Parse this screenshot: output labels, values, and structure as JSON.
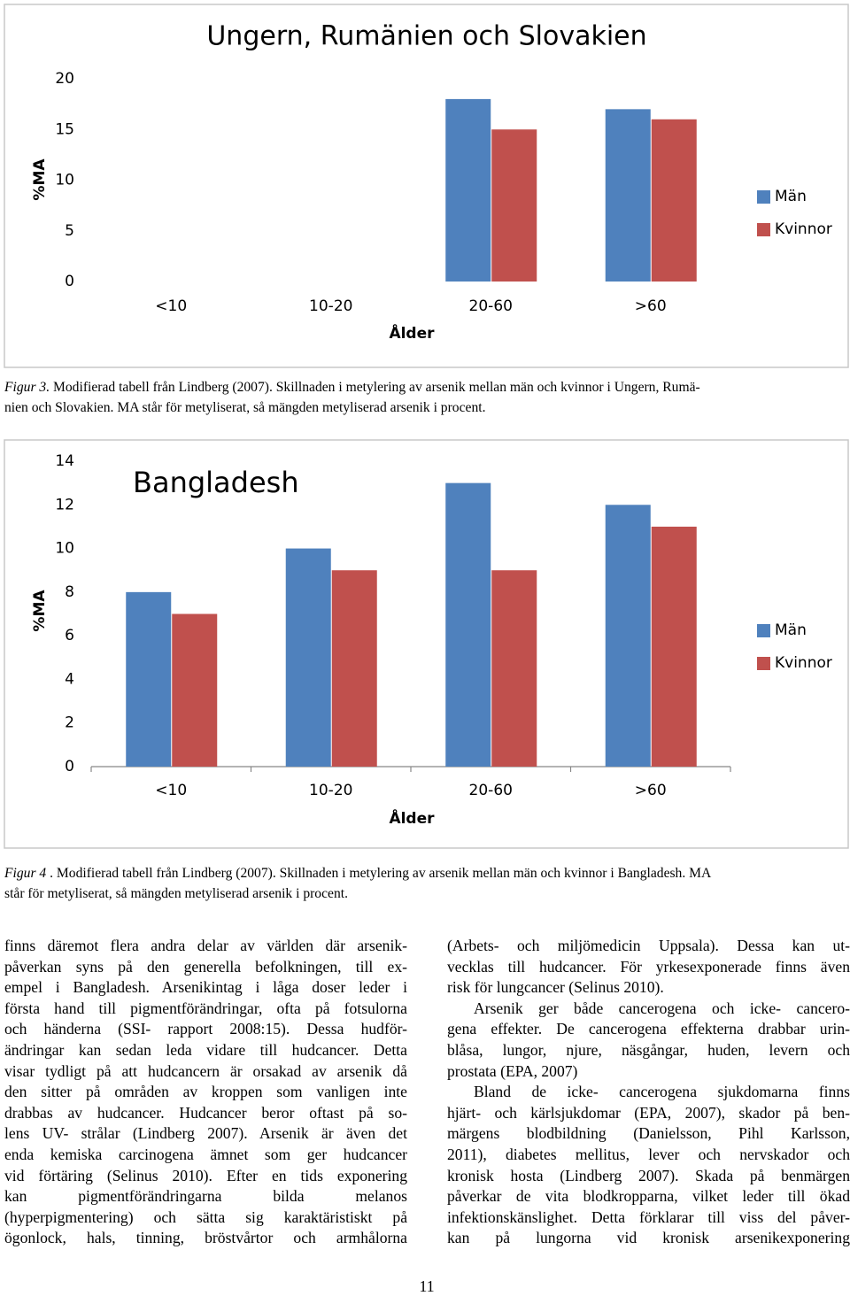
{
  "chart_data": [
    {
      "type": "bar",
      "title": "Ungern, Rumänien och Slovakien",
      "ylabel": "%MA",
      "xlabel": "Ålder",
      "categories": [
        "<10",
        "10-20",
        "20-60",
        ">60"
      ],
      "series": [
        {
          "name": "Män",
          "color": "#4f81bd",
          "values": [
            null,
            null,
            18,
            17
          ]
        },
        {
          "name": "Kvinnor",
          "color": "#c0504d",
          "values": [
            null,
            null,
            15,
            16
          ]
        }
      ],
      "ylim": [
        0,
        20
      ],
      "yticks": [
        0,
        5,
        10,
        15,
        20
      ],
      "legend": "right"
    },
    {
      "type": "bar",
      "title": "Bangladesh",
      "ylabel": "%MA",
      "xlabel": "Ålder",
      "categories": [
        "<10",
        "10-20",
        "20-60",
        ">60"
      ],
      "series": [
        {
          "name": "Män",
          "color": "#4f81bd",
          "values": [
            8,
            10,
            13,
            12
          ]
        },
        {
          "name": "Kvinnor",
          "color": "#c0504d",
          "values": [
            7,
            9,
            9,
            11
          ]
        }
      ],
      "ylim": [
        0,
        14
      ],
      "yticks": [
        0,
        2,
        4,
        6,
        8,
        10,
        12,
        14
      ],
      "legend": "right"
    }
  ],
  "captions": [
    {
      "label": "Figur 3.",
      "lines": [
        " Modifierad tabell från Lindberg (2007). Skillnaden i metylering av arsenik mellan män och kvinnor i Ungern, Rumä-",
        "nien och Slovakien. MA står för metyliserat, så mängden metyliserad arsenik i procent."
      ]
    },
    {
      "label": "Figur 4",
      "lines": [
        " . Modifierad tabell från Lindberg (2007). Skillnaden i metylering av arsenik mellan män och kvinnor i Bangladesh. MA",
        "står för metyliserat, så mängden metyliserad arsenik i procent."
      ]
    }
  ],
  "body": {
    "columns": [
      [
        [
          "finns däremot flera andra delar av världen där arsenik-",
          "påverkan syns på den generella befolkningen, till ex-",
          "empel i Bangladesh. Arsenikintag i låga doser leder i",
          "första hand till pigmentförändringar, ofta på fotsulorna",
          "och händerna (SSI- rapport 2008:15). Dessa hudför-",
          "ändringar kan sedan leda vidare till hudcancer. Detta",
          "visar tydligt på att hudcancern är orsakad av arsenik då",
          "den sitter på områden av kroppen som vanligen inte",
          "drabbas av hudcancer. Hudcancer beror oftast på so-",
          "lens UV- strålar (Lindberg 2007). Arsenik är även det",
          "enda kemiska carcinogena ämnet som ger hudcancer",
          "vid förtäring (Selinus 2010). Efter en tids exponering",
          "kan pigmentförändringarna bilda melanos",
          "(hyperpigmentering) och sätta sig karaktäristiskt på",
          "ögonlock, hals, tinning, bröstvårtor och armhålorna"
        ]
      ],
      [
        [
          "(Arbets- och miljömedicin Uppsala). Dessa kan ut-",
          "vecklas till hudcancer. För yrkesexponerade finns även",
          "risk för lungcancer (Selinus 2010)."
        ],
        [
          "Arsenik ger både cancerogena och icke- cancero-",
          "gena effekter. De cancerogena effekterna drabbar urin-",
          "blåsa, lungor, njure, näsgångar, huden, levern och",
          "prostata (EPA, 2007)"
        ],
        [
          "Bland de icke- cancerogena sjukdomarna finns",
          "hjärt- och kärlsjukdomar (EPA, 2007), skador på ben-",
          "märgens blodbildning (Danielsson, Pihl Karlsson,",
          "2011), diabetes mellitus, lever och nervskador och",
          "kronisk hosta (Lindberg 2007).  Skada på benmärgen",
          "påverkar de vita blodkropparna, vilket leder till ökad",
          "infektionskänslighet. Detta förklarar till viss del påver-",
          "kan på lungorna vid kronisk arsenikexponering"
        ]
      ]
    ]
  },
  "page_number": "11"
}
